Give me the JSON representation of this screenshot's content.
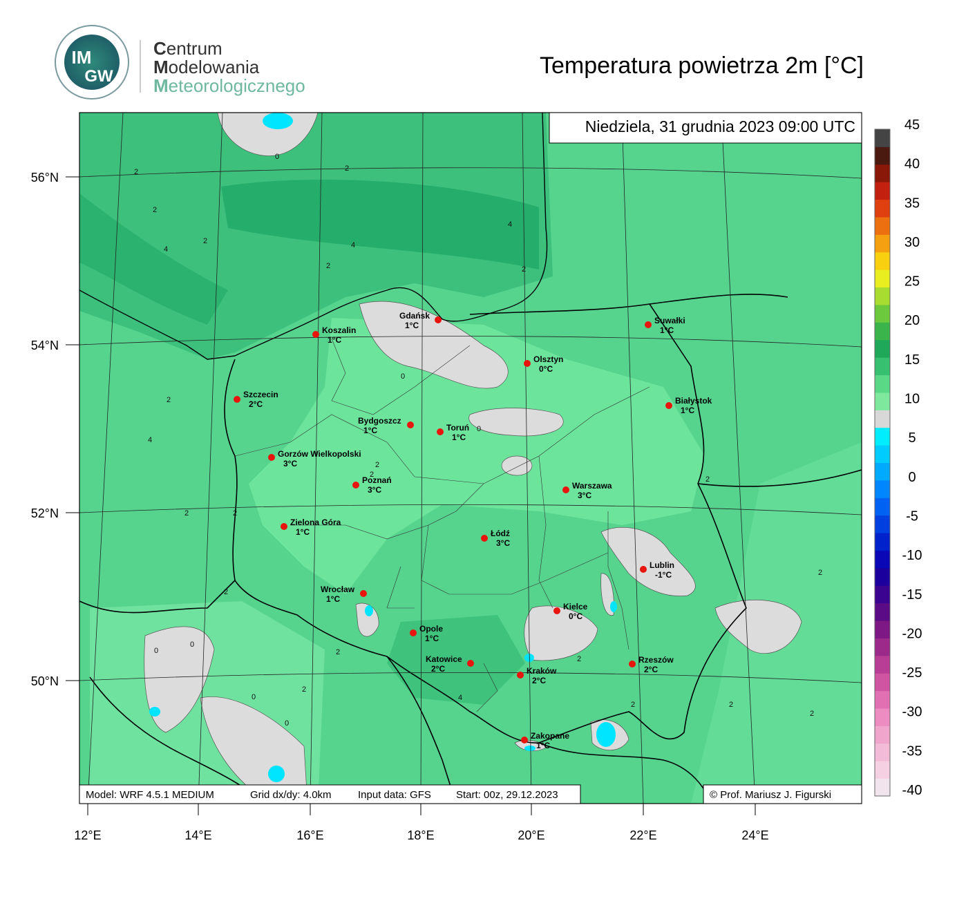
{
  "header": {
    "logo_top": "IM",
    "logo_bottom": "GW",
    "org_lines": [
      "Centrum",
      "Modelowania",
      "Meteorologicznego"
    ],
    "title": "Temperatura powietrza 2m [°C]"
  },
  "map": {
    "date": "Niedziela, 31 grudnia 2023 09:00 UTC",
    "lat_labels": [
      "56°N",
      "54°N",
      "52°N",
      "50°N"
    ],
    "lon_labels": [
      "12°E",
      "14°E",
      "16°E",
      "18°E",
      "20°E",
      "22°E",
      "24°E"
    ],
    "cities": [
      {
        "name": "Gdańsk",
        "temp": "1°C"
      },
      {
        "name": "Koszalin",
        "temp": "1°C"
      },
      {
        "name": "Olsztyn",
        "temp": "0°C"
      },
      {
        "name": "Suwałki",
        "temp": "1°C"
      },
      {
        "name": "Szczecin",
        "temp": "2°C"
      },
      {
        "name": "Białystok",
        "temp": "1°C"
      },
      {
        "name": "Bydgoszcz",
        "temp": "1°C"
      },
      {
        "name": "Toruń",
        "temp": "1°C"
      },
      {
        "name": "Gorzów Wielkopolski",
        "temp": "3°C"
      },
      {
        "name": "Poznań",
        "temp": "3°C"
      },
      {
        "name": "Warszawa",
        "temp": "3°C"
      },
      {
        "name": "Zielona Góra",
        "temp": "1°C"
      },
      {
        "name": "Łódź",
        "temp": "3°C"
      },
      {
        "name": "Lublin",
        "temp": "-1°C"
      },
      {
        "name": "Wrocław",
        "temp": "1°C"
      },
      {
        "name": "Kielce",
        "temp": "0°C"
      },
      {
        "name": "Opole",
        "temp": "1°C"
      },
      {
        "name": "Katowice",
        "temp": "2°C"
      },
      {
        "name": "Rzeszów",
        "temp": "2°C"
      },
      {
        "name": "Kraków",
        "temp": "2°C"
      },
      {
        "name": "Zakopane",
        "temp": "1°C"
      }
    ],
    "contour_labels": [
      0,
      2,
      2,
      4,
      4,
      2,
      2,
      4,
      2,
      2,
      0,
      0,
      2,
      2,
      2,
      4,
      2,
      2,
      2,
      0,
      0,
      2,
      2,
      0,
      0,
      4,
      2,
      2,
      2,
      2,
      2,
      2
    ]
  },
  "footer": {
    "model": "Model: WRF 4.5.1 MEDIUM",
    "grid": "Grid dx/dy: 4.0km",
    "input": "Input data: GFS",
    "start": "Start: 00z, 29.12.2023",
    "credit": "© Prof. Mariusz J. Figurski"
  },
  "colorbar": {
    "range": [
      -40,
      45
    ],
    "ticks": [
      45,
      40,
      35,
      30,
      25,
      20,
      15,
      10,
      5,
      0,
      -5,
      -10,
      -15,
      -20,
      -25,
      -30,
      -35,
      -40
    ],
    "colors": [
      "#f2e4ec",
      "#f4d0e2",
      "#f2bcd8",
      "#f0a6cc",
      "#ec8cc0",
      "#e070b2",
      "#cf55a3",
      "#b83d95",
      "#9c2a8a",
      "#7d1885",
      "#5c0b86",
      "#3a0490",
      "#1c009e",
      "#0a08b6",
      "#0022cc",
      "#0040e0",
      "#0062f2",
      "#0086ff",
      "#00aaff",
      "#00ccff",
      "#00ecff",
      "#d8d8d8",
      "#7ee89c",
      "#5ad886",
      "#36c070",
      "#20a85a",
      "#3cb44c",
      "#6cc83c",
      "#a8dc30",
      "#e8ee20",
      "#f8d010",
      "#f4a010",
      "#ec7010",
      "#e04010",
      "#c42010",
      "#8a1808",
      "#4a1a10",
      "#444444"
    ]
  }
}
